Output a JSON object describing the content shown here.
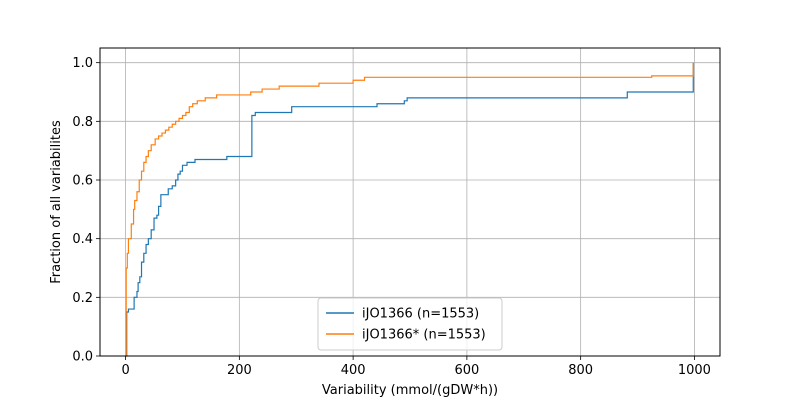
{
  "chart_data": {
    "type": "line",
    "step": true,
    "title": "",
    "xlabel": "Variability (mmol/(gDW*h))",
    "ylabel": "Fraction of all variabilites",
    "xlim": [
      -45,
      1045
    ],
    "ylim": [
      0.0,
      1.05
    ],
    "xticks": [
      0,
      200,
      400,
      600,
      800,
      1000
    ],
    "yticks": [
      0.0,
      0.2,
      0.4,
      0.6,
      0.8,
      1.0
    ],
    "xtick_labels": [
      "0",
      "200",
      "400",
      "600",
      "800",
      "1000"
    ],
    "ytick_labels": [
      "0.0",
      "0.2",
      "0.4",
      "0.6",
      "0.8",
      "1.0"
    ],
    "grid": true,
    "legend_position": "lower-center",
    "series": [
      {
        "name": "iJO1366 (n=1553)",
        "color": "#1f77b4",
        "points": [
          [
            0,
            0.0
          ],
          [
            2,
            0.15
          ],
          [
            5,
            0.16
          ],
          [
            12,
            0.16
          ],
          [
            15,
            0.2
          ],
          [
            20,
            0.22
          ],
          [
            22,
            0.25
          ],
          [
            25,
            0.27
          ],
          [
            28,
            0.32
          ],
          [
            32,
            0.35
          ],
          [
            36,
            0.38
          ],
          [
            40,
            0.4
          ],
          [
            45,
            0.43
          ],
          [
            50,
            0.47
          ],
          [
            55,
            0.48
          ],
          [
            58,
            0.51
          ],
          [
            62,
            0.55
          ],
          [
            72,
            0.55
          ],
          [
            75,
            0.57
          ],
          [
            82,
            0.58
          ],
          [
            88,
            0.6
          ],
          [
            92,
            0.62
          ],
          [
            96,
            0.63
          ],
          [
            100,
            0.65
          ],
          [
            108,
            0.66
          ],
          [
            115,
            0.66
          ],
          [
            122,
            0.67
          ],
          [
            130,
            0.67
          ],
          [
            155,
            0.67
          ],
          [
            158,
            0.67
          ],
          [
            178,
            0.68
          ],
          [
            220,
            0.68
          ],
          [
            222,
            0.82
          ],
          [
            228,
            0.83
          ],
          [
            290,
            0.83
          ],
          [
            292,
            0.85
          ],
          [
            440,
            0.85
          ],
          [
            442,
            0.86
          ],
          [
            490,
            0.87
          ],
          [
            495,
            0.88
          ],
          [
            880,
            0.88
          ],
          [
            882,
            0.9
          ],
          [
            996,
            0.9
          ],
          [
            998,
            1.0
          ]
        ]
      },
      {
        "name": "iJO1366* (n=1553)",
        "color": "#ff7f0e",
        "points": [
          [
            0,
            0.0
          ],
          [
            1,
            0.3
          ],
          [
            3,
            0.35
          ],
          [
            5,
            0.4
          ],
          [
            10,
            0.45
          ],
          [
            14,
            0.5
          ],
          [
            16,
            0.53
          ],
          [
            20,
            0.56
          ],
          [
            24,
            0.6
          ],
          [
            28,
            0.63
          ],
          [
            32,
            0.66
          ],
          [
            36,
            0.68
          ],
          [
            40,
            0.7
          ],
          [
            45,
            0.72
          ],
          [
            52,
            0.74
          ],
          [
            58,
            0.75
          ],
          [
            64,
            0.76
          ],
          [
            70,
            0.77
          ],
          [
            76,
            0.78
          ],
          [
            82,
            0.79
          ],
          [
            88,
            0.8
          ],
          [
            94,
            0.81
          ],
          [
            100,
            0.82
          ],
          [
            106,
            0.83
          ],
          [
            112,
            0.85
          ],
          [
            118,
            0.86
          ],
          [
            126,
            0.87
          ],
          [
            140,
            0.88
          ],
          [
            160,
            0.89
          ],
          [
            215,
            0.89
          ],
          [
            220,
            0.9
          ],
          [
            240,
            0.91
          ],
          [
            270,
            0.92
          ],
          [
            320,
            0.92
          ],
          [
            340,
            0.93
          ],
          [
            380,
            0.93
          ],
          [
            400,
            0.94
          ],
          [
            420,
            0.95
          ],
          [
            440,
            0.95
          ],
          [
            920,
            0.95
          ],
          [
            925,
            0.955
          ],
          [
            996,
            0.955
          ],
          [
            998,
            1.0
          ]
        ]
      }
    ]
  }
}
